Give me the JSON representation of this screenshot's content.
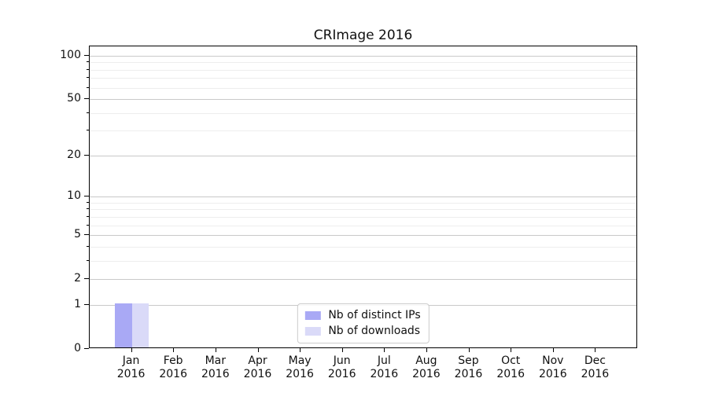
{
  "chart_data": {
    "type": "bar",
    "title": "CRImage 2016",
    "categories": [
      "Jan 2016",
      "Feb 2016",
      "Mar 2016",
      "Apr 2016",
      "May 2016",
      "Jun 2016",
      "Jul 2016",
      "Aug 2016",
      "Sep 2016",
      "Oct 2016",
      "Nov 2016",
      "Dec 2016"
    ],
    "series": [
      {
        "name": "Nb of distinct IPs",
        "color": "#a9a9f5",
        "values": [
          1,
          0,
          0,
          0,
          0,
          0,
          0,
          0,
          0,
          0,
          0,
          0
        ]
      },
      {
        "name": "Nb of downloads",
        "color": "#dadaf8",
        "values": [
          1,
          0,
          0,
          0,
          0,
          0,
          0,
          0,
          0,
          0,
          0,
          0
        ]
      }
    ],
    "xlabel": "",
    "ylabel": "",
    "yscale": "log1p",
    "ylim": [
      0,
      116
    ],
    "y_major_ticks": [
      0,
      1,
      2,
      5,
      10,
      20,
      50,
      100
    ],
    "y_minor_ticks": [
      3,
      4,
      6,
      7,
      8,
      9,
      30,
      40,
      60,
      70,
      80,
      90
    ],
    "grid": "horizontal",
    "legend_position": "lower center",
    "colors": {
      "major_grid": "#c9c9c9",
      "minor_grid": "#ededed",
      "axis": "#000000",
      "background": "#ffffff"
    }
  }
}
